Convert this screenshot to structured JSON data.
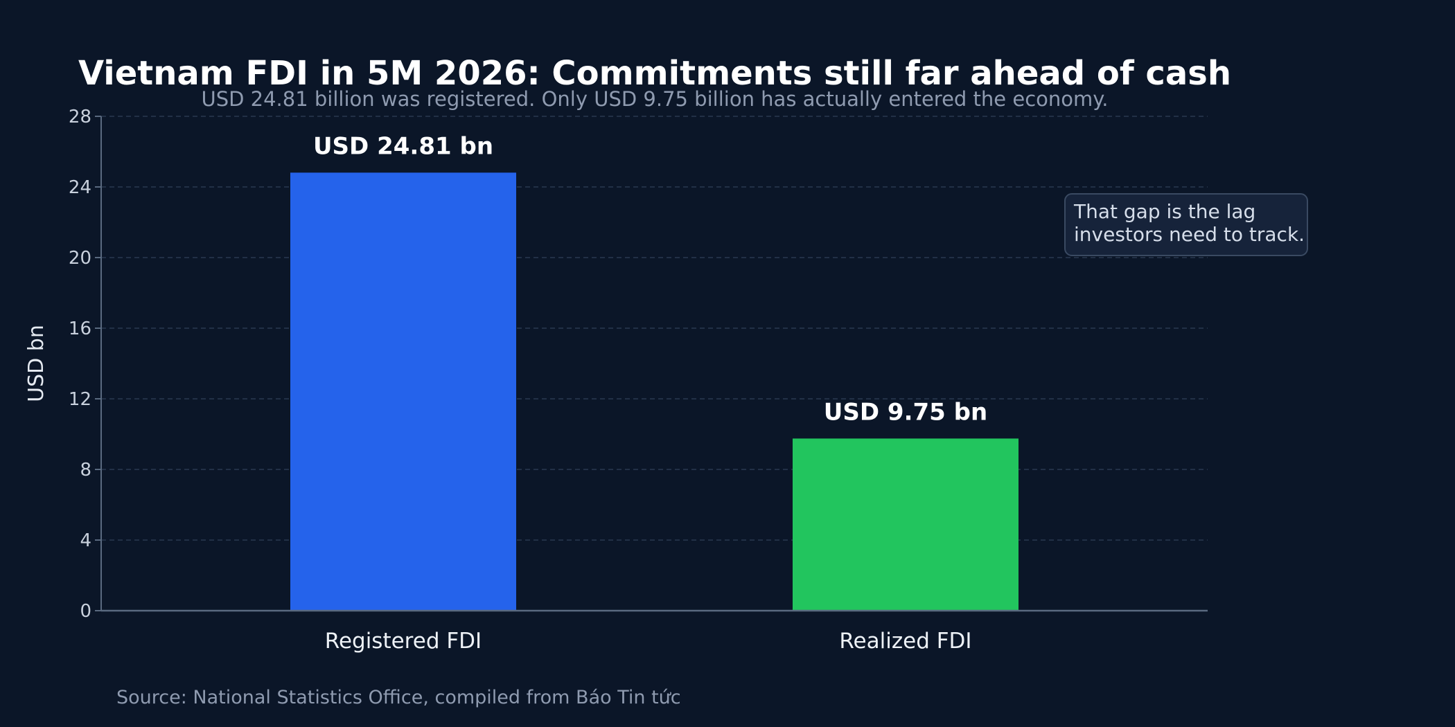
{
  "chart_data": {
    "type": "bar",
    "title": "Vietnam FDI in 5M 2026: Commitments still far ahead of cash",
    "subtitle": "USD 24.81 billion was registered. Only USD 9.75 billion has actually entered the economy.",
    "ylabel": "USD bn",
    "xlabel": "",
    "categories": [
      "Registered FDI",
      "Realized FDI"
    ],
    "values": [
      24.81,
      9.75
    ],
    "value_labels": [
      "USD 24.81 bn",
      "USD 9.75 bn"
    ],
    "colors": [
      "#2563eb",
      "#22c55e"
    ],
    "ylim": [
      0,
      28
    ],
    "yticks": [
      0,
      4,
      8,
      12,
      16,
      20,
      24,
      28
    ],
    "grid": true,
    "annotation": {
      "lines": [
        "That gap is the lag",
        "investors need to track."
      ]
    },
    "source": "Source: National Statistics Office, compiled from Báo Tin tức"
  },
  "theme": {
    "background": "#0b1628",
    "grid_color": "#2a3950",
    "axis_color": "#5a6a80",
    "annotation_bg": "#16233a",
    "annotation_border": "#3a4a62"
  }
}
